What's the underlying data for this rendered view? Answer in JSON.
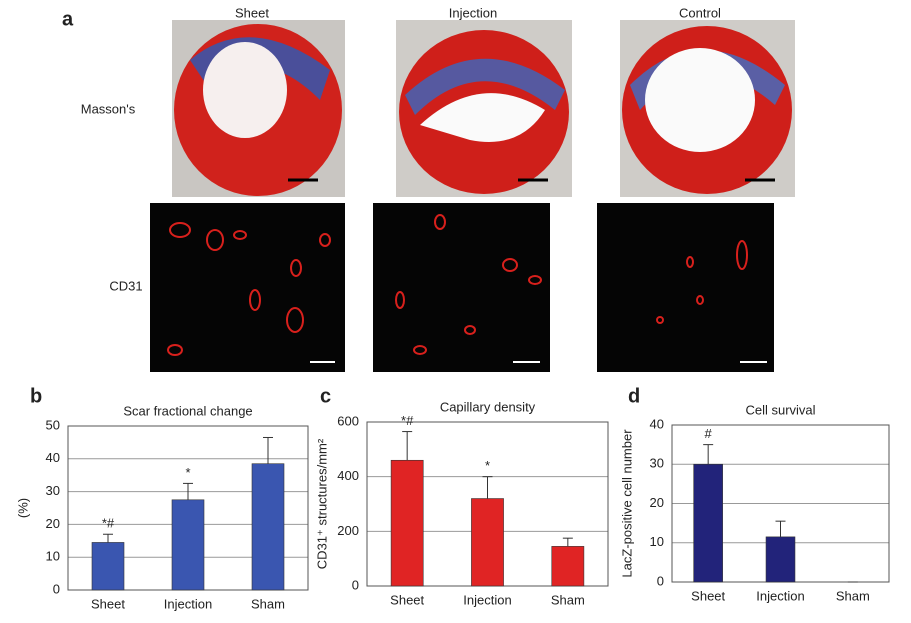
{
  "panels": {
    "a": "a",
    "b": "b",
    "c": "c",
    "d": "d",
    "columns": [
      "Sheet",
      "Injection",
      "Control"
    ],
    "rows": [
      "Masson's",
      "CD31"
    ]
  },
  "chart_data": [
    {
      "type": "bar",
      "title": "Scar fractional change",
      "ylabel": "(%)",
      "categories": [
        "Sheet",
        "Injection",
        "Sham"
      ],
      "values": [
        14.5,
        27.5,
        38.5
      ],
      "errors": [
        2.5,
        5,
        8
      ],
      "annotations": [
        "*#",
        "*",
        null
      ],
      "color": "#3a56b0",
      "ylim": [
        0,
        50
      ],
      "yticks": [
        0,
        10,
        20,
        30,
        40,
        50
      ],
      "grid": true
    },
    {
      "type": "bar",
      "title": "Capillary density",
      "ylabel": "CD31⁺ structures/mm²",
      "categories": [
        "Sheet",
        "Injection",
        "Sham"
      ],
      "values": [
        460,
        320,
        145
      ],
      "errors": [
        105,
        80,
        30
      ],
      "annotations": [
        "*#",
        "*",
        null
      ],
      "color": "#e02424",
      "ylim": [
        0,
        600
      ],
      "yticks": [
        0,
        200,
        400,
        600
      ],
      "grid": true
    },
    {
      "type": "bar",
      "title": "Cell survival",
      "ylabel": "LacZ-positive cell number",
      "categories": [
        "Sheet",
        "Injection",
        "Sham"
      ],
      "values": [
        30,
        11.5,
        0
      ],
      "errors": [
        5,
        4,
        0
      ],
      "annotations": [
        "#",
        null,
        null
      ],
      "color": "#22237a",
      "ylim": [
        0,
        40
      ],
      "yticks": [
        0,
        10,
        20,
        30,
        40
      ],
      "grid": true
    }
  ]
}
